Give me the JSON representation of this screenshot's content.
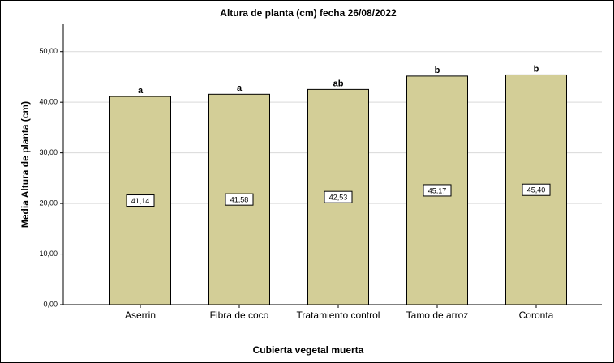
{
  "chart_data": {
    "type": "bar",
    "title": "Altura de planta (cm) fecha 26/08/2022",
    "xlabel": "Cubierta vegetal muerta",
    "ylabel": "Media Altura de planta (cm)",
    "categories": [
      "Aserrin",
      "Fibra de coco",
      "Tratamiento control",
      "Tamo de arroz",
      "Coronta"
    ],
    "values": [
      41.14,
      41.58,
      42.53,
      45.17,
      45.4
    ],
    "value_labels": [
      "41,14",
      "41,58",
      "42,53",
      "45,17",
      "45,40"
    ],
    "annotations": [
      "a",
      "a",
      "ab",
      "b",
      "b"
    ],
    "color": "#d3ce97",
    "ylim": [
      0,
      55.4
    ],
    "yticks": [
      {
        "value": 0,
        "label": "0,00"
      },
      {
        "value": 10,
        "label": "10,00"
      },
      {
        "value": 20,
        "label": "20,00"
      },
      {
        "value": 30,
        "label": "30,00"
      },
      {
        "value": 40,
        "label": "40,00"
      },
      {
        "value": 50,
        "label": "50,00"
      }
    ],
    "grid": true
  }
}
